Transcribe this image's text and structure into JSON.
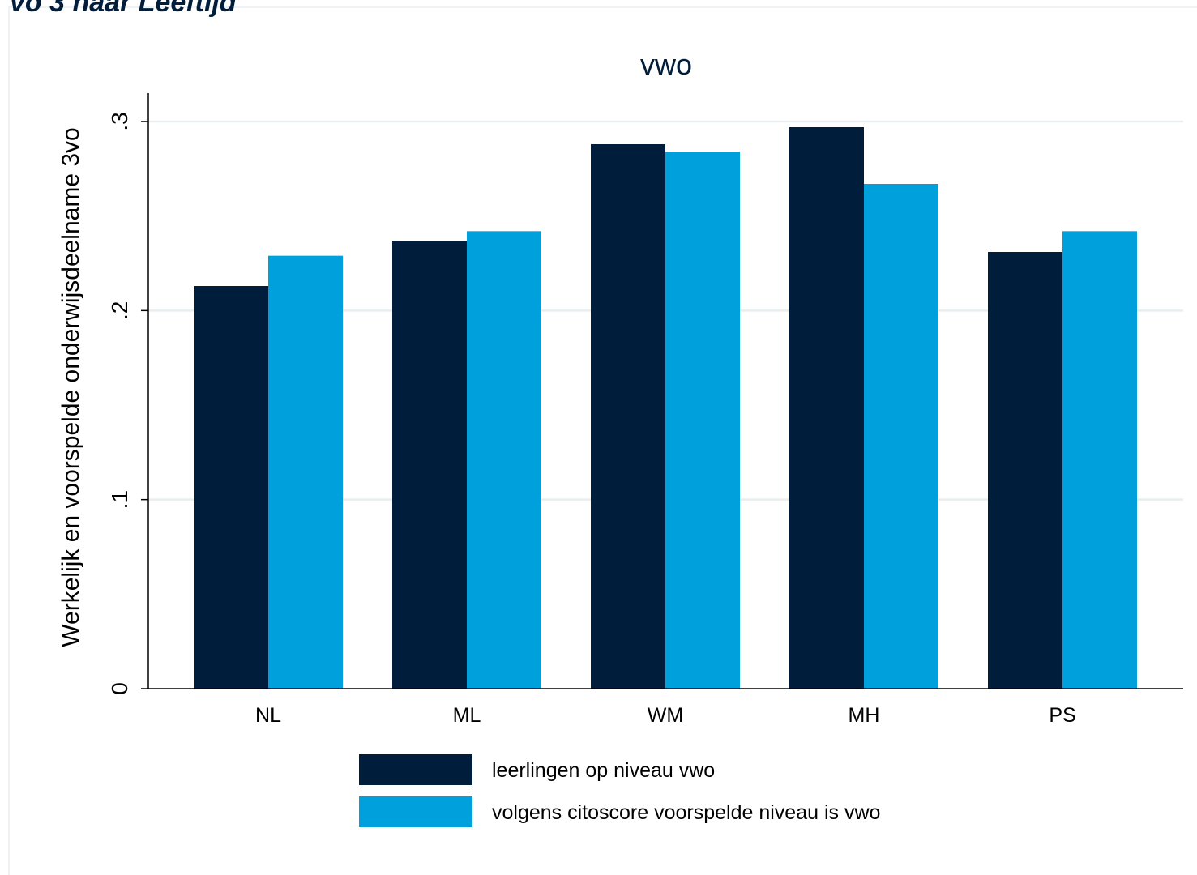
{
  "header_fragment": "vo 3 naar Leeftijd",
  "chart_data": {
    "type": "bar",
    "title": "vwo",
    "xlabel": "",
    "ylabel": "Werkelijk en voorspelde onderwijsdeelname 3vo",
    "categories": [
      "NL",
      "ML",
      "WM",
      "MH",
      "PS"
    ],
    "series": [
      {
        "name": "leerlingen op niveau vwo",
        "color": "#001e3c",
        "values": [
          0.213,
          0.237,
          0.288,
          0.297,
          0.231
        ]
      },
      {
        "name": "volgens citoscore voorspelde niveau is vwo",
        "color": "#00a0dc",
        "values": [
          0.229,
          0.242,
          0.284,
          0.267,
          0.242
        ]
      }
    ],
    "ylim": [
      0,
      0.315
    ],
    "yticks": [
      {
        "value": 0,
        "label": "0"
      },
      {
        "value": 0.1,
        "label": ".1"
      },
      {
        "value": 0.2,
        "label": ".2"
      },
      {
        "value": 0.3,
        "label": ".3"
      }
    ],
    "grid": true,
    "legend_position": "bottom"
  }
}
